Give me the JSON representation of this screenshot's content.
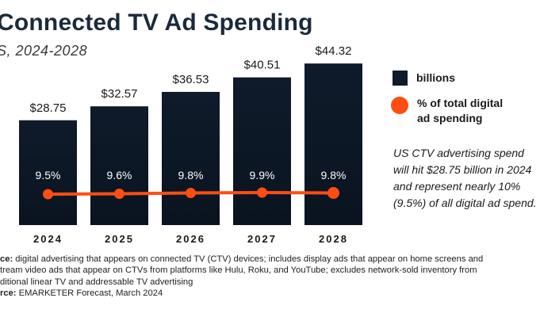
{
  "header": {
    "title": "Connected TV Ad Spending",
    "subtitle": "S, 2024-2028"
  },
  "legend": {
    "bar_label": "billions",
    "line_label": "% of total digital\nad spending"
  },
  "callout": {
    "lines": [
      "US CTV advertising spend",
      "will hit $28.75 billion in 2024",
      "and represent nearly 10%",
      "(9.5%) of all digital ad spend."
    ]
  },
  "footnote": {
    "note_prefix": "ce:",
    "note_lines": [
      " digital advertising that appears on connected TV (CTV) devices; includes display ads that appear on home screens and",
      "tream video ads that appear on CTVs from platforms like Hulu, Roku, and YouTube; excludes network-sold inventory from",
      "ditional linear TV and addressable TV advertising"
    ],
    "source_prefix": "rce:",
    "source_text": " EMARKETER Forecast, March 2024"
  },
  "colors": {
    "bar": "#0f1b2b",
    "line": "#ff4d12",
    "title": "#1b2a3a"
  },
  "chart_data": {
    "type": "bar",
    "categories": [
      "2024",
      "2025",
      "2026",
      "2027",
      "2028"
    ],
    "series": [
      {
        "name": "billions",
        "type": "bar",
        "values": [
          28.75,
          32.57,
          36.53,
          40.51,
          44.32
        ],
        "labels": [
          "$28.75",
          "$32.57",
          "$36.53",
          "$40.51",
          "$44.32"
        ]
      },
      {
        "name": "% of total digital ad spending",
        "type": "line",
        "values": [
          9.5,
          9.6,
          9.8,
          9.9,
          9.8
        ],
        "labels": [
          "9.5%",
          "9.6%",
          "9.8%",
          "9.9%",
          "9.8%"
        ]
      }
    ],
    "ylim": [
      0,
      50
    ],
    "grid": false,
    "legend_position": "right"
  }
}
